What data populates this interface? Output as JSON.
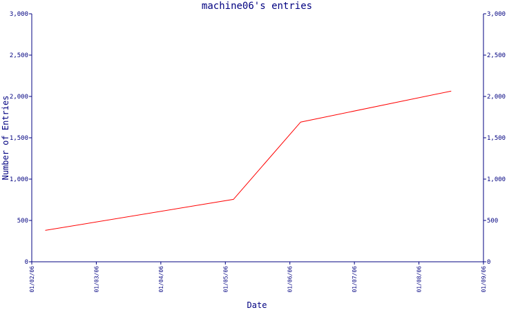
{
  "chart_data": {
    "type": "line",
    "title": "machine06's entries",
    "xlabel": "Date",
    "ylabel": "Number of Entries",
    "x_ticks": [
      "01/02/06",
      "01/03/06",
      "01/04/06",
      "01/05/06",
      "01/06/06",
      "01/07/06",
      "01/08/06",
      "01/09/06"
    ],
    "y_ticks": [
      "0",
      "500",
      "1,000",
      "1,500",
      "2,000",
      "2,500",
      "3,000"
    ],
    "ylim": [
      0,
      3000
    ],
    "xlim": [
      "2006-01-02",
      "2006-01-09"
    ],
    "grid": false,
    "series": [
      {
        "color": "#ff0000",
        "points": [
          {
            "x": "2006-01-02 05:00",
            "y": 380
          },
          {
            "x": "2006-01-05 03:00",
            "y": 755
          },
          {
            "x": "2006-01-06 04:00",
            "y": 1690
          },
          {
            "x": "2006-01-08 12:00",
            "y": 2065
          }
        ]
      }
    ],
    "colors": {
      "axis": "#000080",
      "text": "#000080",
      "line": "#ff0000"
    }
  }
}
